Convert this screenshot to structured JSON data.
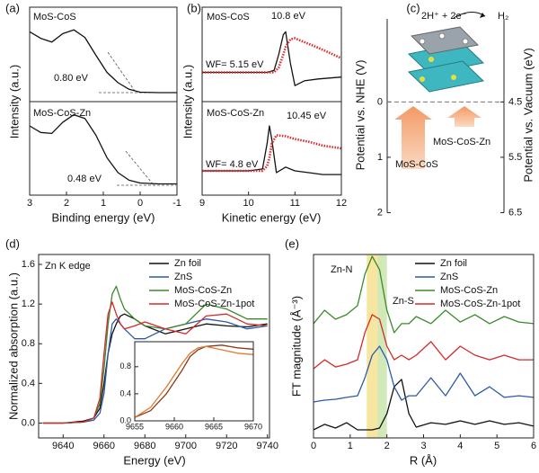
{
  "chart_data": [
    {
      "type": "line",
      "label": "(a)",
      "ylabel": "Intensity (a.u.)",
      "xlim": [
        3,
        -1
      ],
      "ylim": [
        0,
        10
      ],
      "x": [
        3,
        2.7,
        2.4,
        2.1,
        1.8,
        1.5,
        1.2,
        0.9,
        0.6,
        0.3,
        0,
        -0.5,
        -1
      ],
      "series": [
        {
          "name": "MoS-CoS",
          "color": "#111111",
          "values": [
            7.4,
            6.7,
            6.3,
            7.2,
            7.6,
            6.8,
            4.9,
            3.1,
            2.0,
            1.3,
            1.0,
            0.95,
            0.95
          ]
        }
      ],
      "annotations": [
        "0.80 eV"
      ]
    },
    {
      "type": "line",
      "xlabel": "Binding energy (eV)",
      "xlim": [
        3,
        -1
      ],
      "ylim": [
        0,
        10
      ],
      "xticks": [
        3,
        2,
        1,
        0,
        -1
      ],
      "x": [
        3,
        2.7,
        2.4,
        2.1,
        1.8,
        1.5,
        1.2,
        0.9,
        0.6,
        0.3,
        0,
        -0.5,
        -1
      ],
      "series": [
        {
          "name": "MoS-CoS-Zn",
          "color": "#111111",
          "values": [
            7.4,
            6.7,
            6.6,
            7.8,
            8.6,
            8.2,
            6.4,
            4.0,
            2.4,
            1.6,
            1.3,
            1.2,
            1.2
          ]
        }
      ],
      "annotations": [
        "0.48 eV"
      ]
    },
    {
      "type": "line",
      "label": "(b)",
      "ylabel": "Intensity (a.u.)",
      "xlim": [
        9,
        12
      ],
      "ylim": [
        0,
        10
      ],
      "x": [
        9,
        9.5,
        10,
        10.4,
        10.55,
        10.65,
        10.75,
        10.8,
        10.9,
        11.0,
        11.2,
        11.5,
        12
      ],
      "series": [
        {
          "name": "MoS-CoS",
          "color": "#111111",
          "values": [
            3.1,
            3.1,
            3.1,
            3.1,
            3.3,
            5.0,
            7.1,
            7.4,
            4.1,
            1.7,
            2.2,
            2.4,
            2.6
          ]
        },
        {
          "color": "#e0282a",
          "style": "dotted",
          "values": [
            3.1,
            3.1,
            3.1,
            3.1,
            3.1,
            3.6,
            5.0,
            5.8,
            6.6,
            6.7,
            6.3,
            5.7,
            4.6
          ]
        }
      ],
      "annotations": [
        "10.8 eV",
        "WF= 5.15 eV"
      ]
    },
    {
      "type": "line",
      "xlabel": "Kinetic energy (eV)",
      "xlim": [
        9,
        12
      ],
      "ylim": [
        0,
        10
      ],
      "xticks": [
        9,
        10,
        11,
        12
      ],
      "x": [
        9,
        9.5,
        10,
        10.3,
        10.4,
        10.45,
        10.5,
        10.6,
        10.8,
        11.0,
        11.3,
        11.6,
        12
      ],
      "series": [
        {
          "name": "MoS-CoS-Zn",
          "color": "#111111",
          "values": [
            2.6,
            2.6,
            2.6,
            2.8,
            5.5,
            7.4,
            6.0,
            2.4,
            3.0,
            2.6,
            2.4,
            2.2,
            2.2
          ]
        },
        {
          "color": "#e0282a",
          "style": "dotted",
          "values": [
            2.6,
            2.6,
            2.6,
            2.6,
            3.1,
            4.0,
            5.5,
            6.4,
            6.3,
            6.0,
            5.7,
            5.3,
            5.0
          ]
        }
      ],
      "annotations": [
        "10.45 eV",
        "WF= 4.8 eV"
      ]
    },
    {
      "type": "energy",
      "label": "(c)",
      "ylabel": "Potential vs. NHE (V)",
      "y2label": "Potential vs. Vacuum (eV)",
      "ylim": [
        -1.5,
        2
      ],
      "yticks": [
        0,
        1,
        2
      ],
      "y2lim": [
        3,
        6.5
      ],
      "y2ticks": [
        4.5,
        5.5,
        6.5
      ],
      "annotations": [
        "2H⁺ + 2e⁻",
        "H₂",
        "MoS-CoS-Zn",
        "MoS-CoS"
      ]
    },
    {
      "type": "line",
      "label": "(d)",
      "title": "Zn K edge",
      "xlabel": "Energy (eV)",
      "ylabel": "Normalized absorption (a.u.)",
      "xlim": [
        9628,
        9741
      ],
      "ylim": [
        -0.15,
        1.7
      ],
      "xticks": [
        9640,
        9660,
        9680,
        9700,
        9720,
        9740
      ],
      "yticks": [
        {
          "value": 0,
          "label": "0.0"
        },
        0.4,
        0.8,
        1.2,
        1.6
      ],
      "legend": "upper right",
      "x": [
        9630,
        9640,
        9650,
        9655,
        9658,
        9660,
        9662,
        9664,
        9666,
        9668,
        9670,
        9675,
        9680,
        9690,
        9700,
        9710,
        9720,
        9730,
        9740
      ],
      "series": [
        {
          "name": "Zn foil",
          "color": "#111111",
          "values": [
            0,
            0,
            0.02,
            0.05,
            0.15,
            0.4,
            0.7,
            0.9,
            1.0,
            1.08,
            1.1,
            1.05,
            0.98,
            0.9,
            0.95,
            1.0,
            0.98,
            0.97,
            1.0
          ]
        },
        {
          "name": "ZnS",
          "color": "#2b5aa8",
          "values": [
            0,
            0,
            0.01,
            0.03,
            0.1,
            0.3,
            0.7,
            1.0,
            1.05,
            1.0,
            0.95,
            0.85,
            0.85,
            0.95,
            1.0,
            1.05,
            1.02,
            0.95,
            0.98
          ]
        },
        {
          "name": "MoS-CoS-Zn",
          "color": "#3a8a2a",
          "values": [
            0,
            0,
            0.01,
            0.05,
            0.2,
            0.55,
            1.0,
            1.3,
            1.38,
            1.25,
            1.15,
            1.05,
            0.98,
            0.95,
            1.0,
            1.2,
            1.15,
            1.05,
            1.05
          ]
        },
        {
          "name": "MoS-CoS-Zn-1pot",
          "color": "#d42a2a",
          "values": [
            0,
            0,
            0.01,
            0.05,
            0.25,
            0.7,
            1.1,
            1.22,
            1.1,
            1.0,
            0.95,
            0.98,
            1.02,
            0.95,
            0.9,
            1.08,
            1.1,
            1.0,
            0.98
          ]
        }
      ]
    },
    {
      "type": "line",
      "xlim": [
        9655,
        9670
      ],
      "ylim": [
        0,
        1.17
      ],
      "xticks": [
        9655,
        9660,
        9665,
        9670
      ],
      "yticks": [
        {
          "value": 0,
          "label": "0.0"
        },
        0.4,
        0.8
      ],
      "x": [
        9655,
        9657,
        9659,
        9661,
        9662,
        9663,
        9664,
        9666,
        9668,
        9670
      ],
      "series": [
        {
          "color": "#8b3a1a",
          "values": [
            0.05,
            0.15,
            0.4,
            0.75,
            0.95,
            1.05,
            1.1,
            1.12,
            1.08,
            1.06
          ]
        },
        {
          "color": "#e07a30",
          "values": [
            0.05,
            0.2,
            0.5,
            0.85,
            1.0,
            1.08,
            1.1,
            1.05,
            1.0,
            0.98
          ]
        }
      ]
    },
    {
      "type": "line",
      "label": "(e)",
      "xlabel": "R (Å)",
      "ylabel": "FT magnitude (Å⁻³)",
      "xlim": [
        0,
        6
      ],
      "ylim": [
        0,
        10
      ],
      "xticks": [
        0,
        1,
        2,
        3,
        4,
        5,
        6
      ],
      "legend": "upper right",
      "bands": [
        {
          "range": [
            1.45,
            1.75
          ],
          "color": "#f5e08a"
        },
        {
          "range": [
            1.75,
            2.0
          ],
          "color": "#c6e3a8"
        }
      ],
      "x": [
        0,
        0.3,
        0.6,
        0.9,
        1.2,
        1.4,
        1.6,
        1.8,
        2.0,
        2.2,
        2.4,
        2.6,
        2.8,
        3.2,
        3.6,
        4.0,
        4.4,
        4.8,
        5.2,
        5.6,
        6.0
      ],
      "series": [
        {
          "name": "Zn foil",
          "color": "#111111",
          "values": [
            0.44,
            0.74,
            0.54,
            0.83,
            0.44,
            0.44,
            0.44,
            0.54,
            1.32,
            2.79,
            3.19,
            1.32,
            0.59,
            0.83,
            0.74,
            0.93,
            0.74,
            0.93,
            0.74,
            0.83,
            0.64
          ]
        },
        {
          "name": "ZnS",
          "color": "#2b5aa8",
          "values": [
            1.96,
            2.06,
            2.11,
            2.21,
            2.3,
            3.28,
            4.51,
            5.0,
            4.26,
            2.79,
            2.06,
            2.3,
            2.3,
            3.28,
            2.3,
            3.53,
            2.3,
            2.79,
            2.21,
            2.3,
            2.21
          ]
        },
        {
          "name": "MoS-CoS-Zn",
          "color": "#3a8a2a",
          "values": [
            6.23,
            6.96,
            6.47,
            6.72,
            7.21,
            8.92,
            9.9,
            9.17,
            6.96,
            5.74,
            6.23,
            6.23,
            6.62,
            6.23,
            6.96,
            6.32,
            6.72,
            6.23,
            6.62,
            6.32,
            6.23
          ]
        },
        {
          "name": "MoS-CoS-Zn-1pot",
          "color": "#d42a2a",
          "values": [
            3.77,
            4.26,
            3.87,
            4.02,
            4.26,
            5.74,
            6.72,
            6.47,
            5.0,
            4.26,
            4.51,
            4.26,
            4.51,
            5.25,
            4.26,
            5.0,
            4.51,
            4.26,
            4.51,
            4.26,
            4.26
          ]
        }
      ],
      "annotations": [
        "Zn-N",
        "Zn-S"
      ]
    }
  ]
}
